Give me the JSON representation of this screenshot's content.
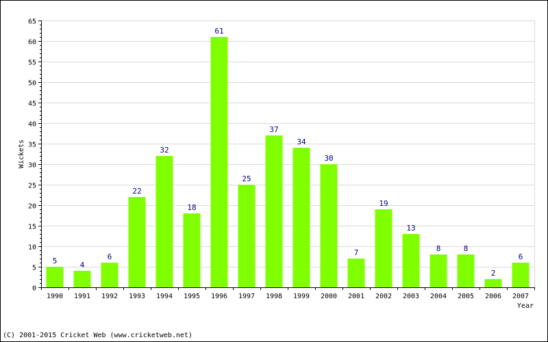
{
  "chart_data": {
    "type": "bar",
    "title": "",
    "xlabel": "Year",
    "ylabel": "Wickets",
    "categories": [
      "1990",
      "1991",
      "1992",
      "1993",
      "1994",
      "1995",
      "1996",
      "1997",
      "1998",
      "1999",
      "2000",
      "2001",
      "2002",
      "2003",
      "2004",
      "2005",
      "2006",
      "2007"
    ],
    "values": [
      5,
      4,
      6,
      22,
      32,
      18,
      61,
      25,
      37,
      34,
      30,
      7,
      19,
      13,
      8,
      8,
      2,
      6
    ],
    "ylim": [
      0,
      65
    ],
    "ytick_step": 5,
    "grid": true,
    "bar_color": "#7fff00",
    "label_color": "#000080",
    "grid_color": "#d8d8d8"
  },
  "footer": {
    "copyright": "(C) 2001-2015 Cricket Web (www.cricketweb.net)"
  }
}
